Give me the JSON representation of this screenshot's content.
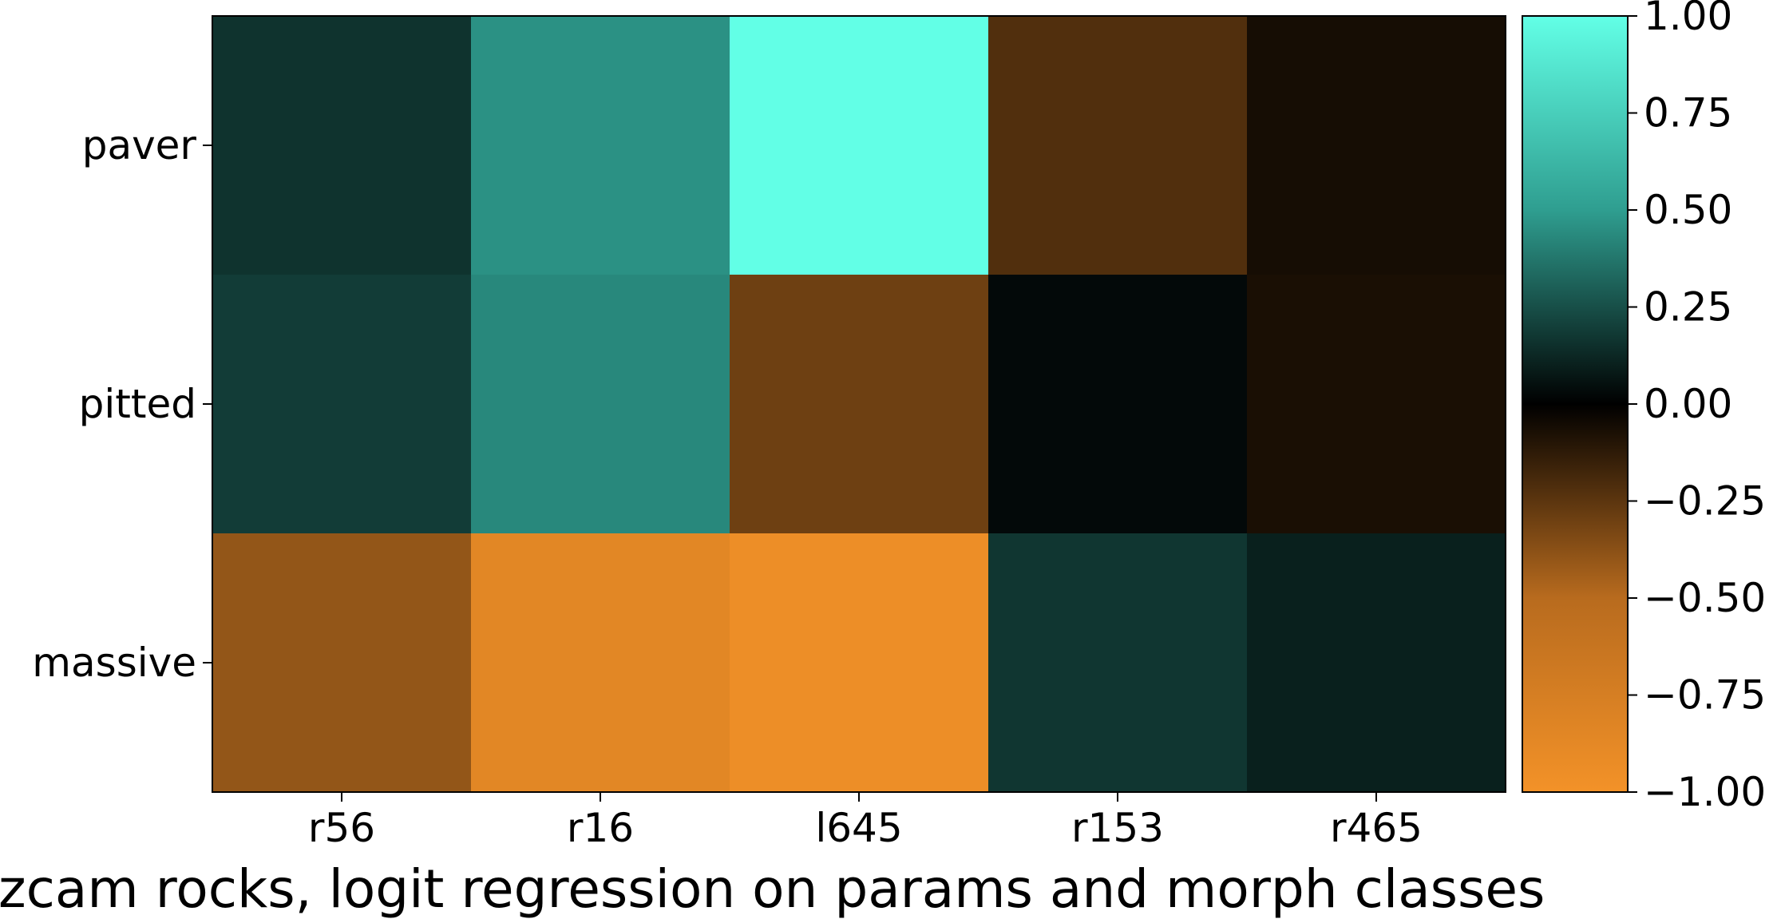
{
  "chart_data": {
    "type": "heatmap",
    "title": "zcam rocks, logit regression on params and morph classes",
    "x_categories": [
      "r56",
      "r16",
      "l645",
      "r153",
      "r465"
    ],
    "y_categories": [
      "paver",
      "pitted",
      "massive"
    ],
    "values": [
      [
        0.16,
        0.46,
        1.0,
        -0.22,
        -0.06
      ],
      [
        0.19,
        0.43,
        -0.3,
        0.03,
        -0.07
      ],
      [
        -0.4,
        -0.86,
        -0.95,
        0.17,
        0.1
      ]
    ],
    "colorbar": {
      "range": [
        -1.0,
        1.0
      ],
      "ticks": [
        "1.00",
        "0.75",
        "0.50",
        "0.25",
        "0.00",
        "−0.25",
        "−0.50",
        "−0.75",
        "−1.00"
      ],
      "tick_values": [
        1.0,
        0.75,
        0.5,
        0.25,
        0.0,
        -0.25,
        -0.5,
        -0.75,
        -1.0
      ],
      "colormap": "diverging orange-black-cyan",
      "colors": {
        "negative": "#f39228",
        "zero": "#000000",
        "positive": "#62ffe6"
      }
    }
  }
}
